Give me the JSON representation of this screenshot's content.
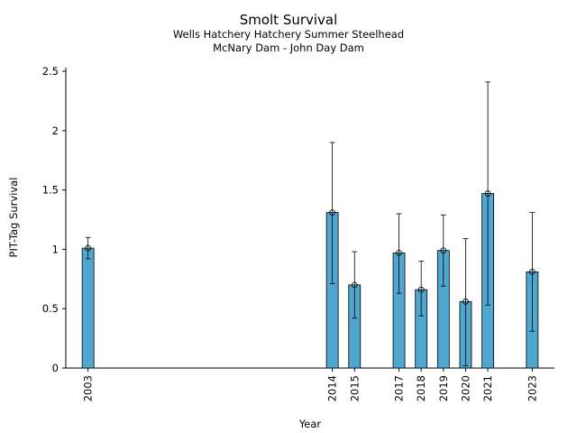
{
  "chart_data": {
    "type": "bar",
    "title": "Smolt Survival",
    "subtitle_1": "Wells Hatchery Hatchery Summer Steelhead",
    "subtitle_2": "McNary Dam - John Day Dam",
    "xlabel": "Year",
    "ylabel": "PIT-Tag Survival",
    "ylim": [
      0,
      2.5
    ],
    "yticks": [
      "0",
      "0.5",
      "1",
      "1.5",
      "2",
      "2.5"
    ],
    "xlim": [
      2002.0,
      2024.0
    ],
    "bar_color": "#4fa7d0",
    "series": [
      {
        "name": "PIT-Tag Survival",
        "points": [
          {
            "year": "2003",
            "value": 1.01,
            "lower": 0.92,
            "upper": 1.1
          },
          {
            "year": "2014",
            "value": 1.31,
            "lower": 0.71,
            "upper": 1.9
          },
          {
            "year": "2015",
            "value": 0.7,
            "lower": 0.42,
            "upper": 0.98
          },
          {
            "year": "2017",
            "value": 0.97,
            "lower": 0.63,
            "upper": 1.3
          },
          {
            "year": "2018",
            "value": 0.66,
            "lower": 0.44,
            "upper": 0.9
          },
          {
            "year": "2019",
            "value": 0.99,
            "lower": 0.69,
            "upper": 1.29
          },
          {
            "year": "2020",
            "value": 0.56,
            "lower": 0.02,
            "upper": 1.09
          },
          {
            "year": "2021",
            "value": 1.47,
            "lower": 0.53,
            "upper": 2.41
          },
          {
            "year": "2023",
            "value": 0.81,
            "lower": 0.31,
            "upper": 1.31
          }
        ]
      }
    ]
  }
}
